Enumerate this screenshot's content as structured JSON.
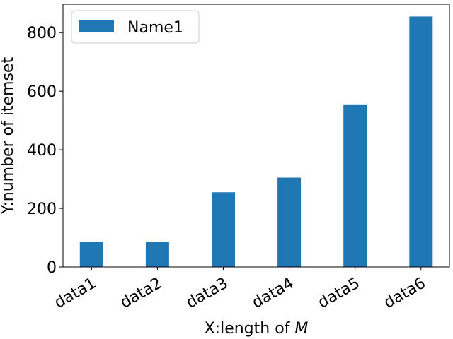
{
  "chart_data": {
    "type": "bar",
    "title": "",
    "categories": [
      "data1",
      "data2",
      "data3",
      "data4",
      "data5",
      "data6"
    ],
    "series": [
      {
        "name": "Name1",
        "values": [
          85,
          85,
          255,
          305,
          555,
          855
        ],
        "color": "#1f77b4"
      }
    ],
    "xlabel": "X:length of ",
    "xlabel_math": "M",
    "ylabel": "Y:number of itemset",
    "ylim": [
      0,
      897
    ],
    "yticks": [
      0,
      200,
      400,
      600,
      800
    ],
    "grid": false,
    "legend_position": "top-left",
    "xtick_rotation_deg": -30
  }
}
